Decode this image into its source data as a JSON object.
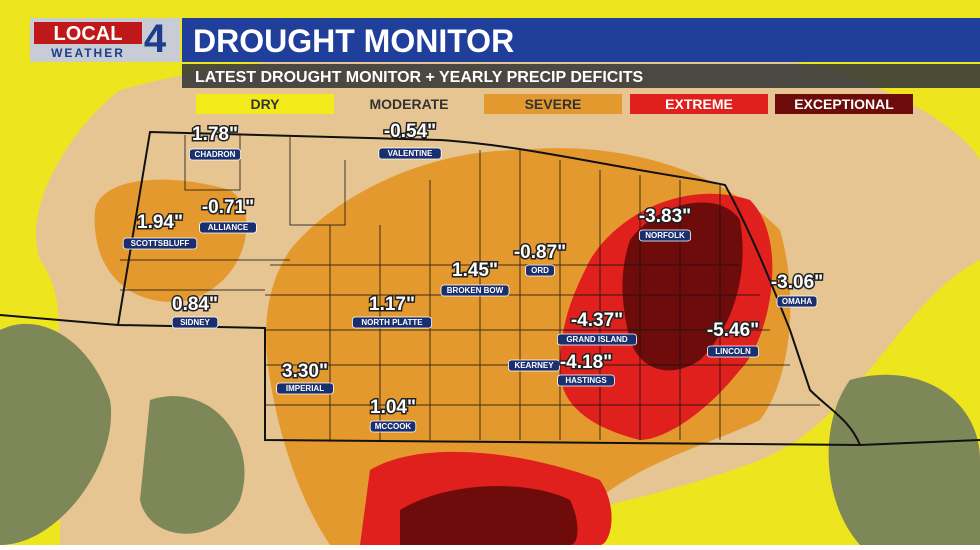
{
  "logo": {
    "line1": "LOCAL",
    "number": "4",
    "line2": "WEATHER"
  },
  "header": {
    "title": "DROUGHT MONITOR",
    "subtitle": "LATEST DROUGHT MONITOR + YEARLY PRECIP DEFICITS"
  },
  "legend": [
    {
      "label": "DRY",
      "color": "#f3ea1a"
    },
    {
      "label": "MODERATE",
      "color": "#e6c592"
    },
    {
      "label": "SEVERE",
      "color": "#e4992e"
    },
    {
      "label": "EXTREME",
      "color": "#e0201c"
    },
    {
      "label": "EXCEPTIONAL",
      "color": "#6e0c0c"
    }
  ],
  "cities": [
    {
      "name": "CHADRON",
      "value": "1.78\""
    },
    {
      "name": "VALENTINE",
      "value": "-0.54\""
    },
    {
      "name": "SCOTTSBLUFF",
      "value": "1.94\""
    },
    {
      "name": "ALLIANCE",
      "value": "-0.71\""
    },
    {
      "name": "SIDNEY",
      "value": "0.84\""
    },
    {
      "name": "NORTH PLATTE",
      "value": "1.17\""
    },
    {
      "name": "BROKEN BOW",
      "value": "1.45\""
    },
    {
      "name": "ORD",
      "value": "-0.87\""
    },
    {
      "name": "NORFOLK",
      "value": "-3.83\""
    },
    {
      "name": "OMAHA",
      "value": "-3.06\""
    },
    {
      "name": "GRAND ISLAND",
      "value": "-4.37\""
    },
    {
      "name": "LINCOLN",
      "value": "-5.46\""
    },
    {
      "name": "KEARNEY"
    },
    {
      "name": "HASTINGS",
      "value": "-4.18\""
    },
    {
      "name": "IMPERIAL",
      "value": "3.30\""
    },
    {
      "name": "MCCOOK",
      "value": "1.04\""
    }
  ]
}
